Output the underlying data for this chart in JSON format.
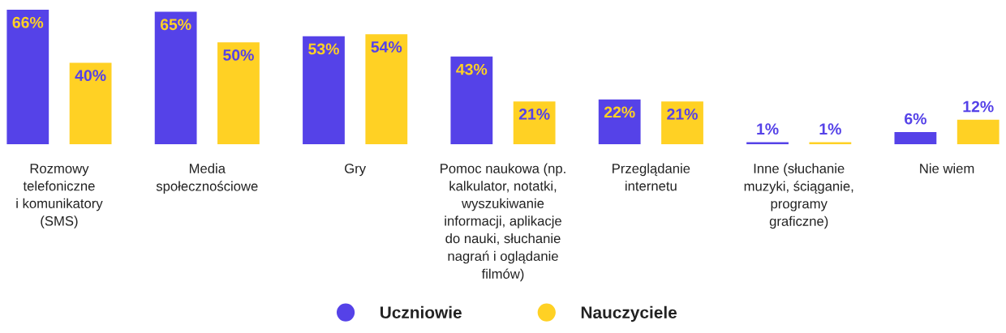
{
  "chart_data": {
    "type": "bar",
    "categories": [
      "Rozmowy\ntelefoniczne\ni komunikatory\n(SMS)",
      "Media\nspołecznościowe",
      "Gry",
      "Pomoc naukowa (np.\nkalkulator, notatki,\nwyszukiwanie\ninformacji, aplikacje\ndo nauki, słuchanie\nnagrań i oglądanie\nfilmów)",
      "Przeglądanie\ninternetu",
      "Inne (słuchanie\nmuzyki, ściąganie,\nprogramy\ngraficzne)",
      "Nie wiem"
    ],
    "series": [
      {
        "name": "Uczniowie",
        "color": "#5542e8",
        "values": [
          66,
          65,
          53,
          43,
          22,
          1,
          6
        ],
        "value_labels": [
          "66%",
          "65%",
          "53%",
          "43%",
          "22%",
          "1%",
          "6%"
        ]
      },
      {
        "name": "Nauczyciele",
        "color": "#ffd124",
        "values": [
          40,
          50,
          54,
          21,
          21,
          1,
          12
        ],
        "value_labels": [
          "40%",
          "50%",
          "54%",
          "21%",
          "21%",
          "1%",
          "12%"
        ]
      }
    ],
    "legend": "bottom",
    "tick_labels": "x"
  }
}
